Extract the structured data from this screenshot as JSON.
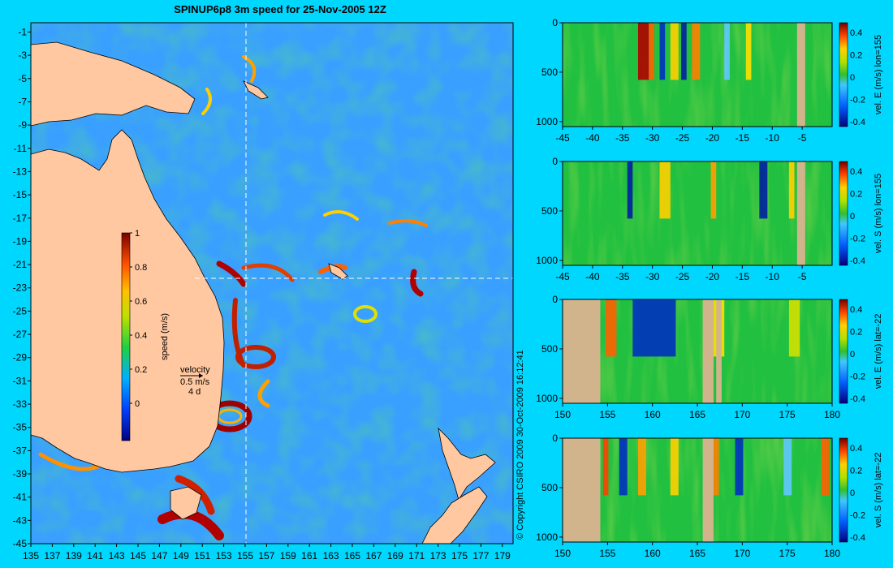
{
  "title": "SPINUP6p8 3m speed for 25-Nov-2005 12Z",
  "copyright": "© Copyright CSIRO 2009   30-Oct-2009 16:12:41",
  "colors": {
    "background": "#00d7ff",
    "land": "#ffc8a0",
    "panel_land": "#d2b48c",
    "crosshair": "#ffffff"
  },
  "map": {
    "lon_ticks": [
      "135",
      "137",
      "139",
      "141",
      "143",
      "145",
      "147",
      "149",
      "151",
      "153",
      "155",
      "157",
      "159",
      "161",
      "163",
      "165",
      "167",
      "169",
      "171",
      "173",
      "175",
      "177",
      "179"
    ],
    "lat_ticks": [
      "-1",
      "-3",
      "-5",
      "-7",
      "-9",
      "-11",
      "-13",
      "-15",
      "-17",
      "-19",
      "-21",
      "-23",
      "-25",
      "-27",
      "-29",
      "-31",
      "-33",
      "-35",
      "-37",
      "-39",
      "-41",
      "-43",
      "-45"
    ],
    "crosshair": {
      "lon": 155,
      "lat": -22
    },
    "colorbar": {
      "label": "speed (m/s)",
      "ticks": [
        "1",
        "0.8",
        "0.6",
        "0.4",
        "0.2",
        "0"
      ]
    },
    "velocity_key": {
      "title": "velocity",
      "speed": "0.5 m/s",
      "days": "4 d"
    }
  },
  "chart_data": [
    {
      "type": "heatmap",
      "ylabel": "vel. E (m/s) lon=155",
      "x_ticks": [
        "-45",
        "-40",
        "-35",
        "-30",
        "-25",
        "-20",
        "-15",
        "-10",
        "-5"
      ],
      "y_ticks": [
        "0",
        "500",
        "1000"
      ],
      "cbar_ticks": [
        "0.4",
        "0.2",
        "0",
        "-0.2",
        "-0.4"
      ],
      "xlim": [
        -45,
        0
      ],
      "ylim": [
        0,
        1050
      ]
    },
    {
      "type": "heatmap",
      "ylabel": "vel. S (m/s) lon=155",
      "x_ticks": [
        "-45",
        "-40",
        "-35",
        "-30",
        "-25",
        "-20",
        "-15",
        "-10",
        "-5"
      ],
      "y_ticks": [
        "0",
        "500",
        "1000"
      ],
      "cbar_ticks": [
        "0.4",
        "0.2",
        "0",
        "-0.2",
        "-0.4"
      ],
      "xlim": [
        -45,
        0
      ],
      "ylim": [
        0,
        1050
      ]
    },
    {
      "type": "heatmap",
      "ylabel": "vel. E (m/s) lat=-22",
      "x_ticks": [
        "150",
        "155",
        "160",
        "165",
        "170",
        "175",
        "180"
      ],
      "y_ticks": [
        "0",
        "500",
        "1000"
      ],
      "cbar_ticks": [
        "0.4",
        "0.2",
        "0",
        "-0.2",
        "-0.4"
      ],
      "xlim": [
        150,
        180
      ],
      "ylim": [
        0,
        1050
      ]
    },
    {
      "type": "heatmap",
      "ylabel": "vel. S (m/s) lat=-22",
      "x_ticks": [
        "150",
        "155",
        "160",
        "165",
        "170",
        "175",
        "180"
      ],
      "y_ticks": [
        "0",
        "500",
        "1000"
      ],
      "cbar_ticks": [
        "0.4",
        "0.2",
        "0",
        "-0.2",
        "-0.4"
      ],
      "xlim": [
        150,
        180
      ],
      "ylim": [
        0,
        1050
      ]
    }
  ]
}
